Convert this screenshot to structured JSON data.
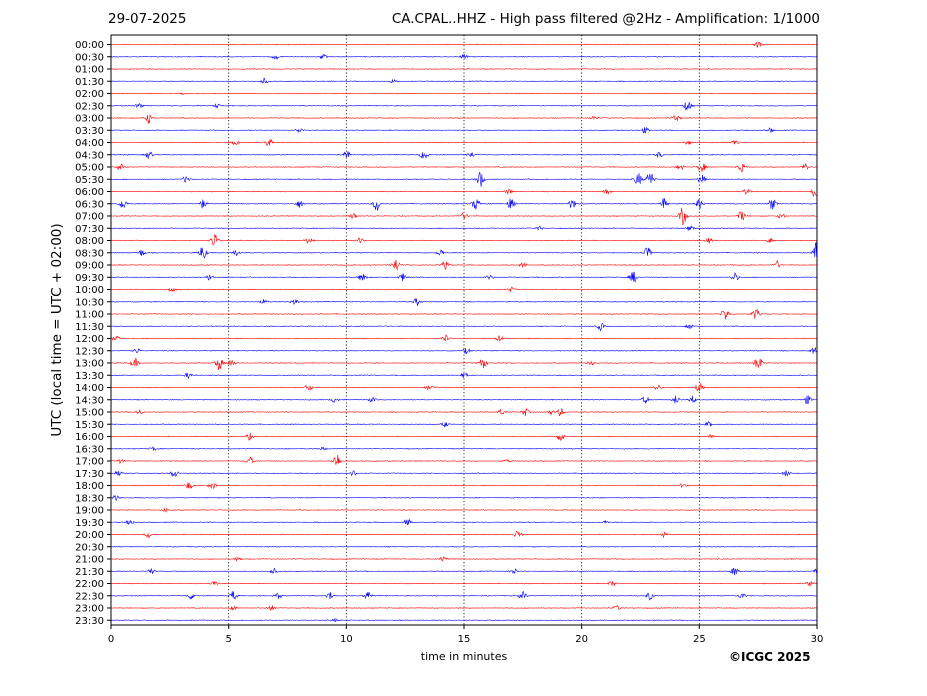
{
  "header": {
    "date": "29-07-2025",
    "title": "CA.CPAL..HHZ - High pass filtered @2Hz - Amplification: 1/1000"
  },
  "credit": "©ICGC 2025",
  "chart_data": {
    "type": "line",
    "xlabel": "time in minutes",
    "ylabel": "UTC (local time = UTC + 02:00)",
    "xlim": [
      0,
      30
    ],
    "x_ticks": [
      "0",
      "5",
      "10",
      "15",
      "20",
      "25",
      "30"
    ],
    "x_tick_values": [
      0,
      5,
      10,
      15,
      20,
      25,
      30
    ],
    "grid": "vertical dotted at every 5 minutes",
    "row_labels": [
      "00:00",
      "00:30",
      "01:00",
      "01:30",
      "02:00",
      "02:30",
      "03:00",
      "03:30",
      "04:00",
      "04:30",
      "05:00",
      "05:30",
      "06:00",
      "06:30",
      "07:00",
      "07:30",
      "08:00",
      "08:30",
      "09:00",
      "09:30",
      "10:00",
      "10:30",
      "11:00",
      "11:30",
      "12:00",
      "12:30",
      "13:00",
      "13:30",
      "14:00",
      "14:30",
      "15:00",
      "15:30",
      "16:00",
      "16:30",
      "17:00",
      "17:30",
      "18:00",
      "18:30",
      "19:00",
      "19:30",
      "20:00",
      "20:30",
      "21:00",
      "21:30",
      "22:00",
      "22:30",
      "23:00",
      "23:30"
    ],
    "trace_colors": [
      "#ff0000",
      "#0000ff"
    ],
    "events": [
      [
        27.5,
        0,
        0.6
      ],
      [
        7,
        1,
        0.5
      ],
      [
        9,
        1,
        0.5
      ],
      [
        15,
        1,
        0.5
      ],
      [
        6.5,
        3,
        0.6
      ],
      [
        12,
        3,
        0.4
      ],
      [
        3,
        4,
        0.3
      ],
      [
        1.2,
        5,
        0.5
      ],
      [
        4.5,
        5,
        0.4
      ],
      [
        24.5,
        5,
        1.2
      ],
      [
        1.6,
        6,
        1.1
      ],
      [
        24,
        6,
        0.8
      ],
      [
        20.5,
        6,
        0.4
      ],
      [
        8,
        7,
        0.5
      ],
      [
        22.7,
        7,
        0.6
      ],
      [
        28,
        7,
        0.4
      ],
      [
        6.7,
        8,
        0.8
      ],
      [
        5.3,
        8,
        0.5
      ],
      [
        24.5,
        8,
        0.5
      ],
      [
        26.5,
        8,
        0.5
      ],
      [
        1.6,
        9,
        0.8
      ],
      [
        10,
        9,
        0.9
      ],
      [
        13.3,
        9,
        1.1
      ],
      [
        15.3,
        9,
        0.6
      ],
      [
        23.3,
        9,
        0.6
      ],
      [
        0.4,
        10,
        0.6
      ],
      [
        25.1,
        10,
        1.1
      ],
      [
        26.8,
        10,
        0.9
      ],
      [
        29.5,
        10,
        0.8
      ],
      [
        24.2,
        10,
        0.6
      ],
      [
        3.2,
        11,
        0.7
      ],
      [
        15.7,
        11,
        1.6
      ],
      [
        22.4,
        11,
        1.3
      ],
      [
        22.9,
        11,
        1.7
      ],
      [
        25.1,
        11,
        1.0
      ],
      [
        16.9,
        12,
        0.5
      ],
      [
        21.1,
        12,
        0.5
      ],
      [
        27,
        12,
        0.6
      ],
      [
        29.9,
        12,
        1.3
      ],
      [
        0.5,
        13,
        1.1
      ],
      [
        3.9,
        13,
        0.9
      ],
      [
        8,
        13,
        0.8
      ],
      [
        11.3,
        13,
        1.6
      ],
      [
        15.5,
        13,
        1.3
      ],
      [
        17,
        13,
        1.1
      ],
      [
        19.6,
        13,
        1.0
      ],
      [
        23.5,
        13,
        1.2
      ],
      [
        25,
        13,
        1.0
      ],
      [
        28.1,
        13,
        1.2
      ],
      [
        10.3,
        14,
        0.7
      ],
      [
        15,
        14,
        0.6
      ],
      [
        24.3,
        14,
        1.9
      ],
      [
        26.8,
        14,
        1.1
      ],
      [
        28.5,
        14,
        0.6
      ],
      [
        18.2,
        15,
        0.4
      ],
      [
        24.6,
        15,
        0.6
      ],
      [
        4.4,
        16,
        1.5
      ],
      [
        8.4,
        16,
        0.6
      ],
      [
        10.6,
        16,
        0.6
      ],
      [
        25.4,
        16,
        0.5
      ],
      [
        28,
        16,
        0.5
      ],
      [
        1.3,
        17,
        0.7
      ],
      [
        3.9,
        17,
        1.5
      ],
      [
        5.3,
        17,
        0.6
      ],
      [
        14,
        17,
        0.7
      ],
      [
        22.8,
        17,
        1.1
      ],
      [
        30,
        17,
        2.2
      ],
      [
        12.1,
        18,
        1.4
      ],
      [
        14.2,
        18,
        0.8
      ],
      [
        17.5,
        18,
        0.5
      ],
      [
        28.3,
        18,
        0.8
      ],
      [
        4.2,
        19,
        0.6
      ],
      [
        10.7,
        19,
        1.1
      ],
      [
        12.4,
        19,
        0.8
      ],
      [
        16.1,
        19,
        0.5
      ],
      [
        22.2,
        19,
        1.2
      ],
      [
        26.5,
        19,
        0.9
      ],
      [
        2.6,
        20,
        0.4
      ],
      [
        17,
        20,
        0.5
      ],
      [
        6.5,
        21,
        0.5
      ],
      [
        7.8,
        21,
        0.6
      ],
      [
        13,
        21,
        0.8
      ],
      [
        26.1,
        22,
        1.3
      ],
      [
        27.4,
        22,
        1.1
      ],
      [
        20.8,
        23,
        0.8
      ],
      [
        24.6,
        23,
        0.5
      ],
      [
        0.2,
        24,
        0.6
      ],
      [
        14.2,
        24,
        0.7
      ],
      [
        16.5,
        24,
        0.5
      ],
      [
        1.1,
        25,
        0.5
      ],
      [
        15.1,
        25,
        0.6
      ],
      [
        29.9,
        25,
        0.7
      ],
      [
        1,
        26,
        1.0
      ],
      [
        4.6,
        26,
        1.4
      ],
      [
        5.1,
        26,
        0.8
      ],
      [
        15.8,
        26,
        1.1
      ],
      [
        27.5,
        26,
        1.6
      ],
      [
        20.4,
        26,
        0.4
      ],
      [
        3.3,
        27,
        0.6
      ],
      [
        15,
        27,
        0.5
      ],
      [
        8.4,
        28,
        0.7
      ],
      [
        13.5,
        28,
        0.6
      ],
      [
        23.2,
        28,
        0.6
      ],
      [
        25,
        28,
        1.1
      ],
      [
        9.5,
        29,
        0.5
      ],
      [
        11.1,
        29,
        0.5
      ],
      [
        22.7,
        29,
        0.7
      ],
      [
        24,
        29,
        0.8
      ],
      [
        24.7,
        29,
        0.8
      ],
      [
        29.6,
        29,
        0.9
      ],
      [
        1.2,
        30,
        0.5
      ],
      [
        16.6,
        30,
        0.6
      ],
      [
        17.6,
        30,
        0.8
      ],
      [
        19.1,
        30,
        0.8
      ],
      [
        18.7,
        30,
        0.4
      ],
      [
        14.2,
        31,
        0.5
      ],
      [
        25.4,
        31,
        0.5
      ],
      [
        5.9,
        32,
        0.7
      ],
      [
        19.1,
        32,
        0.8
      ],
      [
        25.5,
        32,
        0.4
      ],
      [
        1.8,
        33,
        0.4
      ],
      [
        9,
        33,
        0.3
      ],
      [
        5.9,
        34,
        0.8
      ],
      [
        9.6,
        34,
        1.6
      ],
      [
        0.4,
        34,
        0.4
      ],
      [
        16.8,
        34,
        0.3
      ],
      [
        0.3,
        35,
        0.5
      ],
      [
        2.7,
        35,
        0.9
      ],
      [
        10.3,
        35,
        0.6
      ],
      [
        28.7,
        35,
        0.6
      ],
      [
        3.3,
        36,
        0.8
      ],
      [
        4.3,
        36,
        0.7
      ],
      [
        24.3,
        36,
        0.4
      ],
      [
        0.2,
        37,
        0.5
      ],
      [
        2.3,
        38,
        0.4
      ],
      [
        0.8,
        39,
        0.6
      ],
      [
        12.6,
        39,
        0.7
      ],
      [
        21,
        39,
        0.3
      ],
      [
        1.6,
        40,
        0.7
      ],
      [
        17.3,
        40,
        0.8
      ],
      [
        23.5,
        40,
        0.5
      ],
      [
        5.4,
        42,
        0.4
      ],
      [
        14.1,
        42,
        0.6
      ],
      [
        1.7,
        43,
        0.6
      ],
      [
        6.9,
        43,
        0.6
      ],
      [
        17.1,
        43,
        0.6
      ],
      [
        26.5,
        43,
        1.0
      ],
      [
        30,
        43,
        0.5
      ],
      [
        4.4,
        44,
        0.5
      ],
      [
        21.3,
        44,
        0.5
      ],
      [
        29.7,
        44,
        0.5
      ],
      [
        3.4,
        45,
        0.7
      ],
      [
        5.2,
        45,
        1.0
      ],
      [
        7.1,
        45,
        0.6
      ],
      [
        9.3,
        45,
        0.8
      ],
      [
        10.9,
        45,
        0.9
      ],
      [
        17.5,
        45,
        0.8
      ],
      [
        22.9,
        45,
        0.8
      ],
      [
        26.8,
        45,
        0.6
      ],
      [
        5.2,
        46,
        0.4
      ],
      [
        6.8,
        46,
        0.6
      ],
      [
        21.5,
        46,
        0.5
      ],
      [
        9.5,
        47,
        0.3
      ]
    ]
  }
}
